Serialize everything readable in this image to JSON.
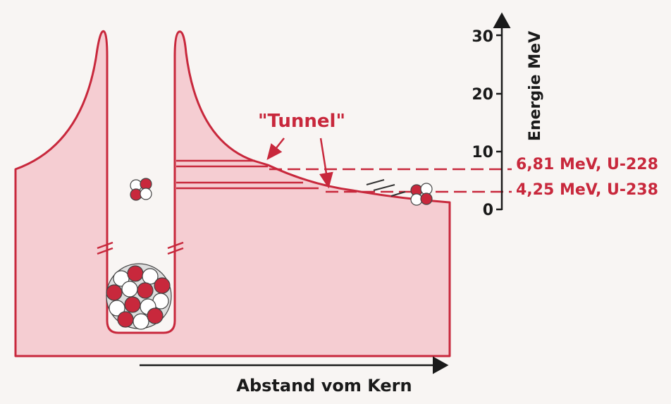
{
  "tunnel_label": "\"Tunnel\"",
  "energy_axis": {
    "label": "Energie MeV",
    "ticks": [
      30,
      20,
      10,
      0
    ]
  },
  "levels": [
    {
      "label": "6,81 MeV, U-228"
    },
    {
      "label": "4,25 MeV, U-238"
    }
  ],
  "distance_axis": {
    "label": "Abstand vom Kern"
  }
}
